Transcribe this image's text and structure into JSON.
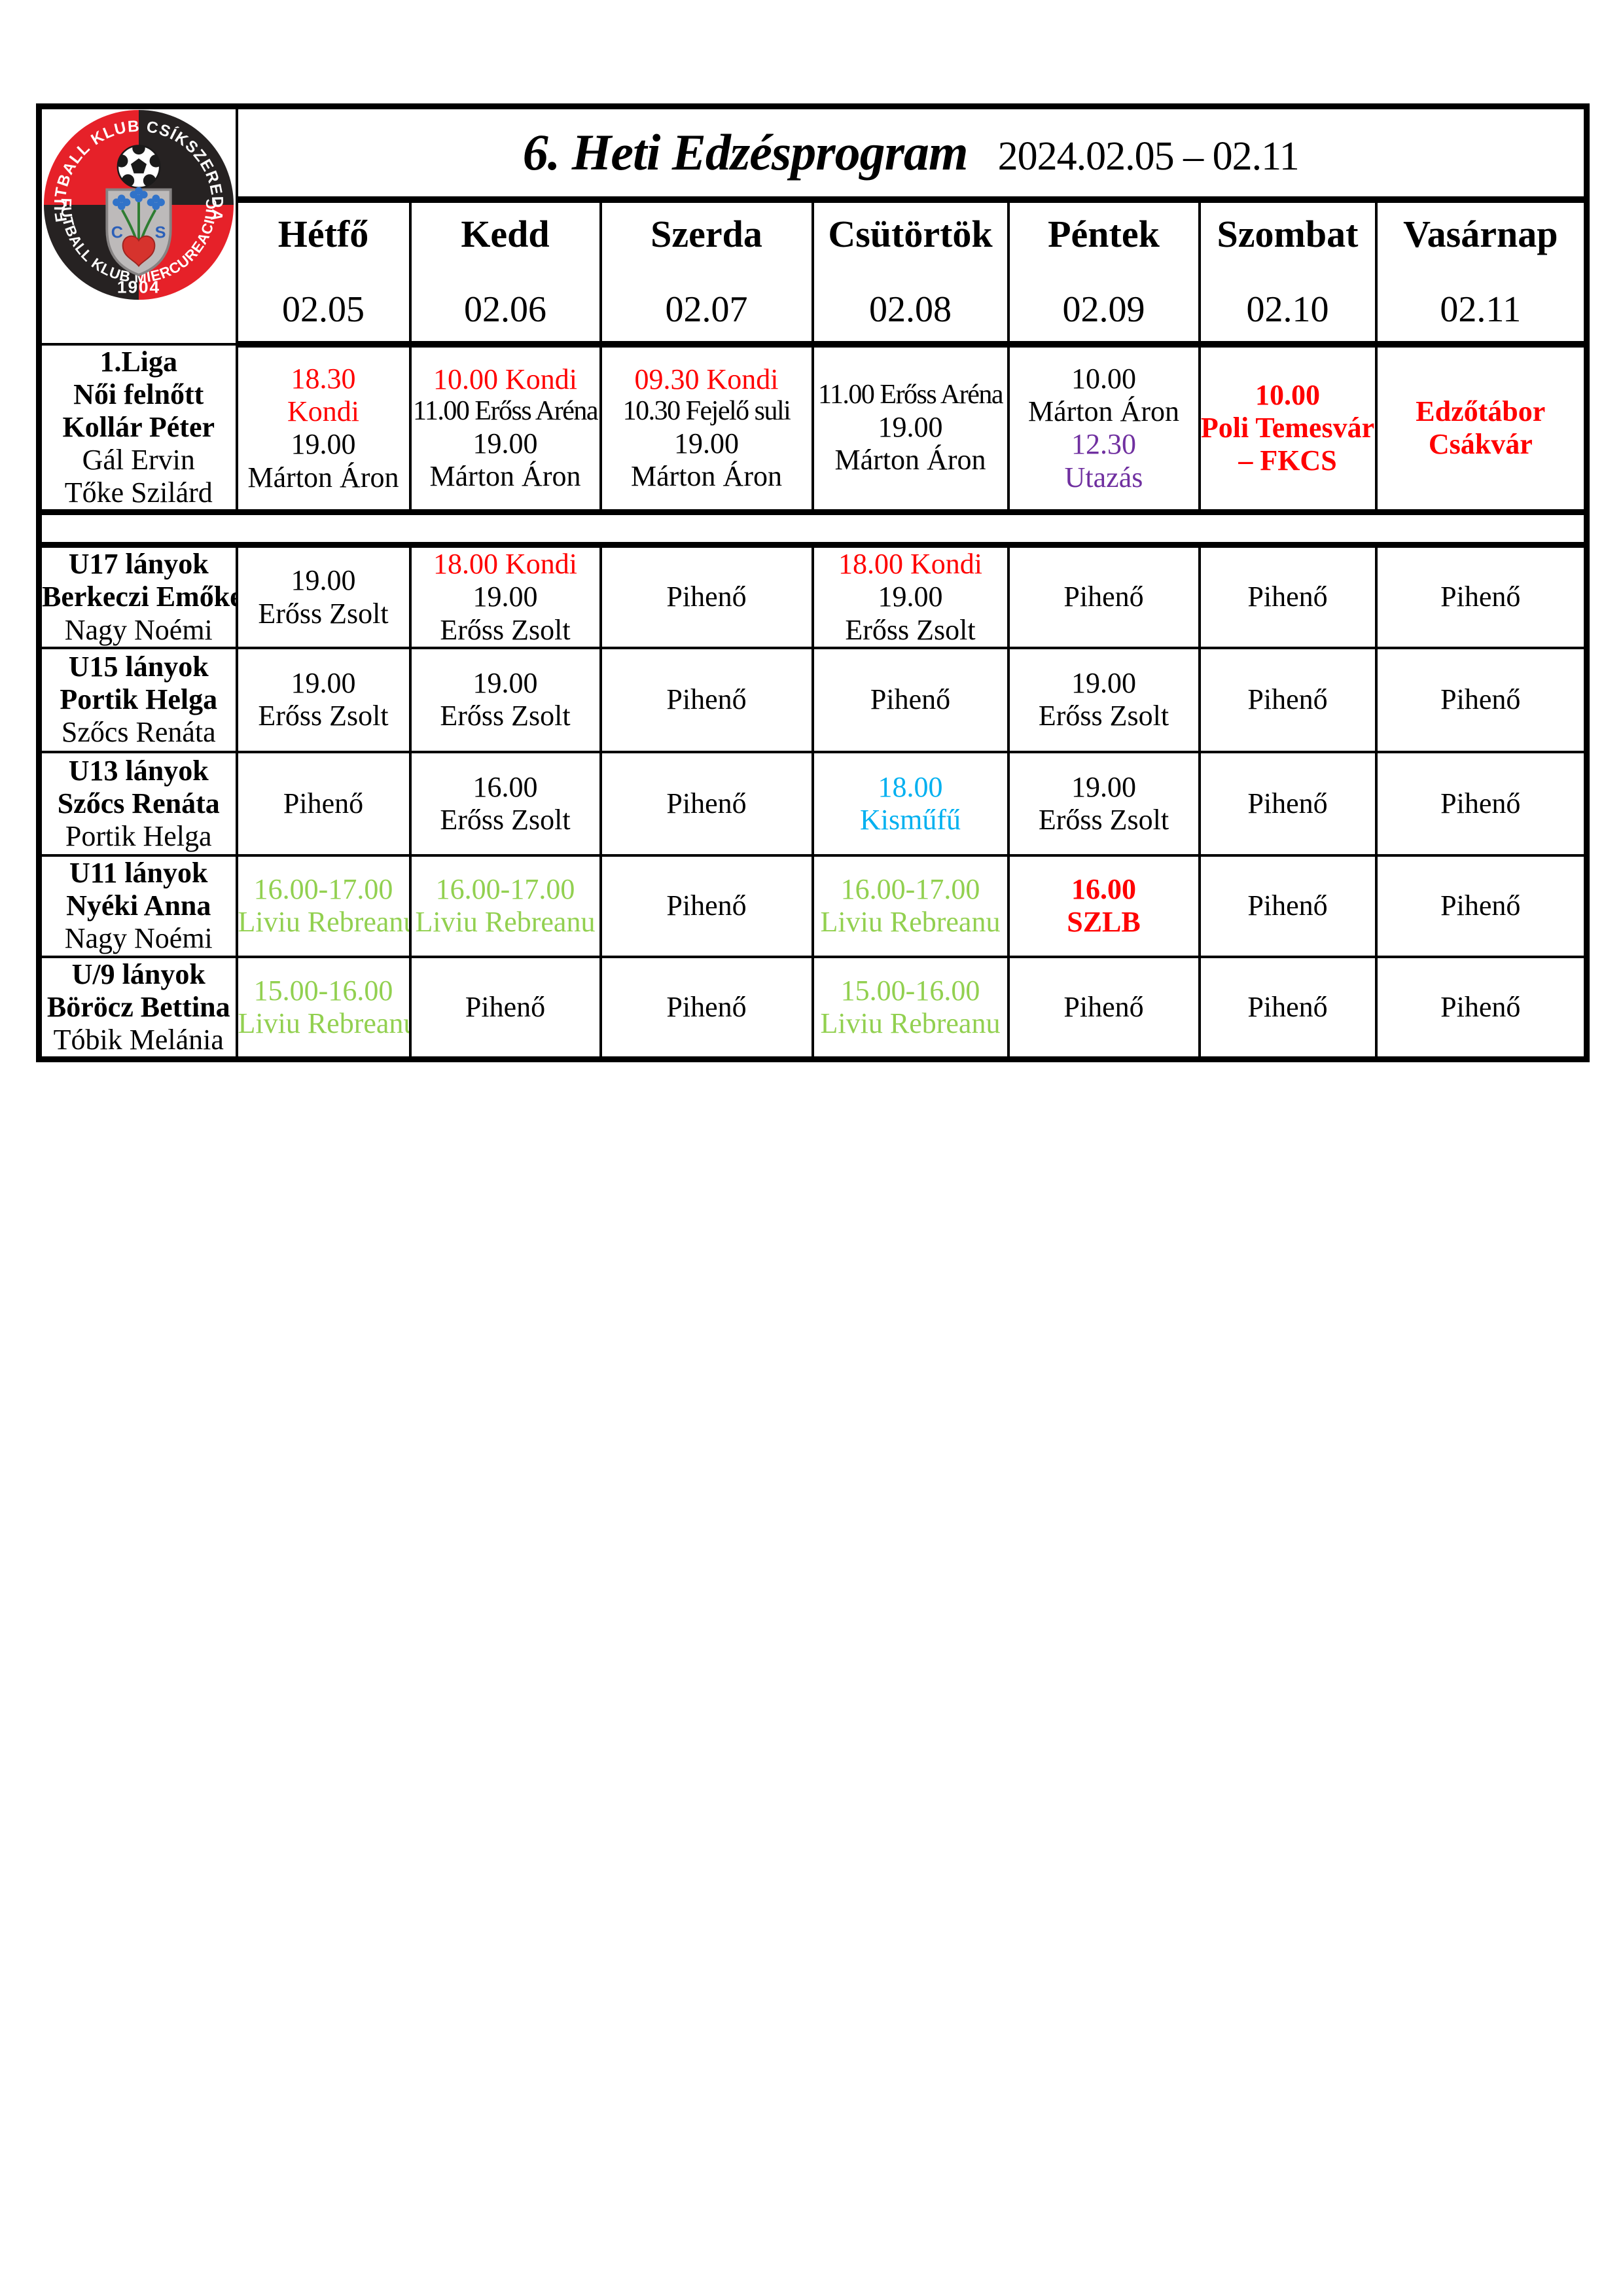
{
  "header": {
    "title": "6. Heti Edzésprogram",
    "date_range": "2024.02.05 – 02.11",
    "days": [
      {
        "name": "Hétfő",
        "date": "02.05"
      },
      {
        "name": "Kedd",
        "date": "02.06"
      },
      {
        "name": "Szerda",
        "date": "02.07"
      },
      {
        "name": "Csütörtök",
        "date": "02.08"
      },
      {
        "name": "Péntek",
        "date": "02.09"
      },
      {
        "name": "Szombat",
        "date": "02.10"
      },
      {
        "name": "Vasárnap",
        "date": "02.11"
      }
    ]
  },
  "logo": {
    "top_text": "FUTBALL KLUB CSÍKSZEREDA",
    "bottom_text": "FUTBALL KLUB MIERCUREACIUC",
    "initials": [
      "C",
      "S"
    ],
    "year": "1904"
  },
  "colors": {
    "red": "#ff0000",
    "purple": "#7030a0",
    "green": "#92d050",
    "blue": "#00b0f0",
    "black": "#000000"
  },
  "rows": [
    {
      "id": "1liga",
      "team": [
        {
          "t": "1.Liga",
          "b": true
        },
        {
          "t": "Női felnőtt",
          "b": true
        },
        {
          "t": "Kollár Péter",
          "b": true
        },
        {
          "t": "Gál Ervin"
        },
        {
          "t": "Tőke Szilárd"
        }
      ],
      "cells": [
        [
          {
            "t": "18.30",
            "c": "red"
          },
          {
            "t": "Kondi",
            "c": "red"
          },
          {
            "t": "19.00"
          },
          {
            "t": "Márton Áron"
          }
        ],
        [
          {
            "t": "10.00 Kondi",
            "c": "red"
          },
          {
            "t": "11.00 Erőss Aréna"
          },
          {
            "t": "19.00"
          },
          {
            "t": "Márton Áron"
          }
        ],
        [
          {
            "t": "09.30 Kondi",
            "c": "red"
          },
          {
            "t": "10.30 Fejelő suli"
          },
          {
            "t": "19.00"
          },
          {
            "t": "Márton Áron"
          }
        ],
        [
          {
            "t": "11.00 Erőss Aréna"
          },
          {
            "t": "19.00"
          },
          {
            "t": "Márton Áron"
          }
        ],
        [
          {
            "t": "10.00"
          },
          {
            "t": "Márton Áron"
          },
          {
            "t": "12.30",
            "c": "purple"
          },
          {
            "t": "Utazás",
            "c": "purple"
          }
        ],
        [
          {
            "t": "10.00",
            "c": "red",
            "b": true
          },
          {
            "t": "Poli Temesvár",
            "c": "red",
            "b": true
          },
          {
            "t": "– FKCS",
            "c": "red",
            "b": true
          }
        ],
        [
          {
            "t": "Edzőtábor",
            "c": "red",
            "b": true
          },
          {
            "t": "Csákvár",
            "c": "red",
            "b": true
          }
        ]
      ]
    },
    {
      "separator": true
    },
    {
      "id": "u17",
      "team": [
        {
          "t": "U17 lányok",
          "b": true
        },
        {
          "t": "Berkeczi Emőke",
          "b": true
        },
        {
          "t": "Nagy Noémi"
        }
      ],
      "cells": [
        [
          {
            "t": "19.00"
          },
          {
            "t": "Erőss Zsolt"
          }
        ],
        [
          {
            "t": "18.00 Kondi",
            "c": "red"
          },
          {
            "t": "19.00"
          },
          {
            "t": "Erőss Zsolt"
          }
        ],
        [
          {
            "t": "Pihenő"
          }
        ],
        [
          {
            "t": "18.00 Kondi",
            "c": "red"
          },
          {
            "t": "19.00"
          },
          {
            "t": "Erőss Zsolt"
          }
        ],
        [
          {
            "t": "Pihenő"
          }
        ],
        [
          {
            "t": "Pihenő"
          }
        ],
        [
          {
            "t": "Pihenő"
          }
        ]
      ]
    },
    {
      "id": "u15",
      "team": [
        {
          "t": "U15 lányok",
          "b": true
        },
        {
          "t": "Portik Helga",
          "b": true
        },
        {
          "t": "Szőcs Renáta"
        }
      ],
      "cells": [
        [
          {
            "t": "19.00"
          },
          {
            "t": "Erőss Zsolt"
          }
        ],
        [
          {
            "t": "19.00"
          },
          {
            "t": "Erőss Zsolt"
          }
        ],
        [
          {
            "t": "Pihenő"
          }
        ],
        [
          {
            "t": "Pihenő"
          }
        ],
        [
          {
            "t": "19.00"
          },
          {
            "t": "Erőss Zsolt"
          }
        ],
        [
          {
            "t": "Pihenő"
          }
        ],
        [
          {
            "t": "Pihenő"
          }
        ]
      ]
    },
    {
      "id": "u13",
      "team": [
        {
          "t": "U13 lányok",
          "b": true
        },
        {
          "t": "Szőcs Renáta",
          "b": true
        },
        {
          "t": "Portik Helga"
        }
      ],
      "cells": [
        [
          {
            "t": "Pihenő"
          }
        ],
        [
          {
            "t": "16.00"
          },
          {
            "t": "Erőss Zsolt"
          }
        ],
        [
          {
            "t": "Pihenő"
          }
        ],
        [
          {
            "t": "18.00",
            "c": "blue"
          },
          {
            "t": "Kisműfű",
            "c": "blue"
          }
        ],
        [
          {
            "t": "19.00"
          },
          {
            "t": "Erőss Zsolt"
          }
        ],
        [
          {
            "t": "Pihenő"
          }
        ],
        [
          {
            "t": "Pihenő"
          }
        ]
      ]
    },
    {
      "id": "u11",
      "team": [
        {
          "t": "U11 lányok",
          "b": true
        },
        {
          "t": "Nyéki Anna",
          "b": true
        },
        {
          "t": "Nagy Noémi"
        }
      ],
      "cells": [
        [
          {
            "t": "16.00-17.00",
            "c": "green"
          },
          {
            "t": "Liviu Rebreanu",
            "c": "green"
          }
        ],
        [
          {
            "t": "16.00-17.00",
            "c": "green"
          },
          {
            "t": "Liviu Rebreanu",
            "c": "green"
          }
        ],
        [
          {
            "t": "Pihenő"
          }
        ],
        [
          {
            "t": "16.00-17.00",
            "c": "green"
          },
          {
            "t": "Liviu Rebreanu",
            "c": "green"
          }
        ],
        [
          {
            "t": "16.00",
            "c": "red",
            "b": true
          },
          {
            "t": "SZLB",
            "c": "red",
            "b": true
          }
        ],
        [
          {
            "t": "Pihenő"
          }
        ],
        [
          {
            "t": "Pihenő"
          }
        ]
      ]
    },
    {
      "id": "u9",
      "team": [
        {
          "t": "U/9 lányok",
          "b": true
        },
        {
          "t": "Böröcz Bettina",
          "b": true
        },
        {
          "t": "Tóbik Melánia"
        }
      ],
      "cells": [
        [
          {
            "t": "15.00-16.00",
            "c": "green"
          },
          {
            "t": "Liviu Rebreanu",
            "c": "green"
          }
        ],
        [
          {
            "t": "Pihenő"
          }
        ],
        [
          {
            "t": "Pihenő"
          }
        ],
        [
          {
            "t": "15.00-16.00",
            "c": "green"
          },
          {
            "t": "Liviu Rebreanu",
            "c": "green"
          }
        ],
        [
          {
            "t": "Pihenő"
          }
        ],
        [
          {
            "t": "Pihenő"
          }
        ],
        [
          {
            "t": "Pihenő"
          }
        ]
      ]
    }
  ]
}
